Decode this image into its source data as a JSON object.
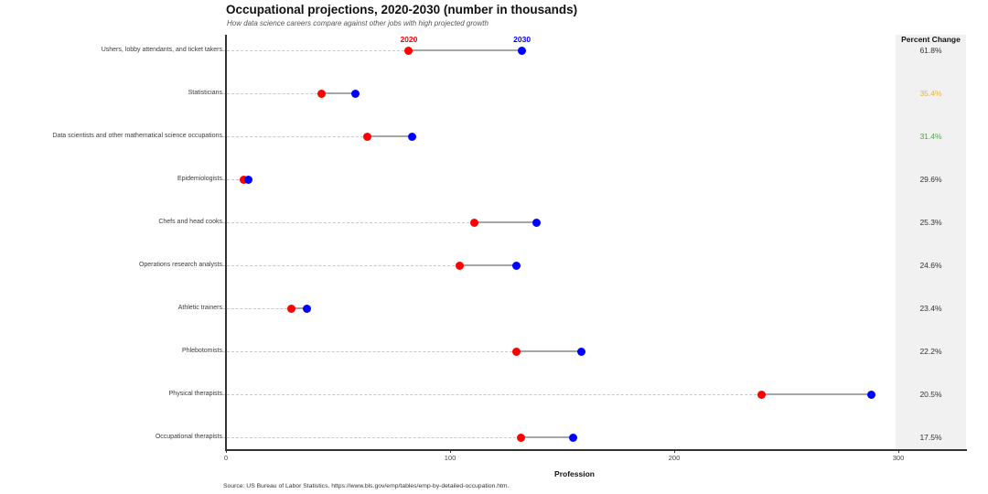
{
  "header": {
    "title": "Occupational projections, 2020-2030 (number in thousands)",
    "subtitle": "How data science careers compare against other jobs with high projected growth"
  },
  "chart_data": {
    "type": "dumbbell",
    "title": "Occupational projections, 2020-2030 (number in thousands)",
    "subtitle": "How data science careers compare against other jobs with high projected growth",
    "xlabel": "Profession",
    "x_ticks": [
      0,
      100,
      200,
      300
    ],
    "xlim": [
      0,
      330
    ],
    "grid": "dashed-leader-lines-only",
    "legend_position": "above-first-row",
    "right_column_header": "Percent Change",
    "series": [
      {
        "name": "2020",
        "color": "#FF0000"
      },
      {
        "name": "2030",
        "color": "#0000FF"
      }
    ],
    "categories": [
      "Ushers, lobby attendants, and ticket takers",
      "Statisticians",
      "Data scientists and other mathematical science occupations",
      "Epidemiologists",
      "Chefs and head cooks",
      "Operations research analysts",
      "Athletic trainers",
      "Phlebotomists",
      "Physical therapists",
      "Occupational therapists"
    ],
    "values_2020": [
      81.6,
      42.7,
      63.2,
      7.8,
      110.7,
      104.1,
      29.3,
      129.6,
      238.8,
      131.6
    ],
    "values_2030": [
      132.1,
      57.8,
      83.1,
      10.1,
      138.7,
      129.7,
      36.2,
      158.4,
      287.8,
      154.7
    ],
    "percent_change": [
      "61.8%",
      "35.4%",
      "31.4%",
      "29.6%",
      "25.3%",
      "24.6%",
      "23.4%",
      "22.2%",
      "20.5%",
      "17.5%"
    ],
    "percent_change_colors": [
      "#333333",
      "#E5B63E",
      "#59A14F",
      "#333333",
      "#333333",
      "#333333",
      "#333333",
      "#333333",
      "#333333",
      "#333333"
    ],
    "colors": {
      "dot_2020": "#FF0000",
      "dot_2030": "#0000FF",
      "connector": "#a6a6a6",
      "leader_dash": "#c9c9c9",
      "panel_background": "#f1f1f1",
      "highlight_gold": "#E5B63E",
      "highlight_green": "#59A14F"
    }
  },
  "footer": {
    "source": "Source: US Bureau of Labor Statistics. https://www.bls.gov/emp/tables/emp-by-detailed-occupation.htm."
  }
}
